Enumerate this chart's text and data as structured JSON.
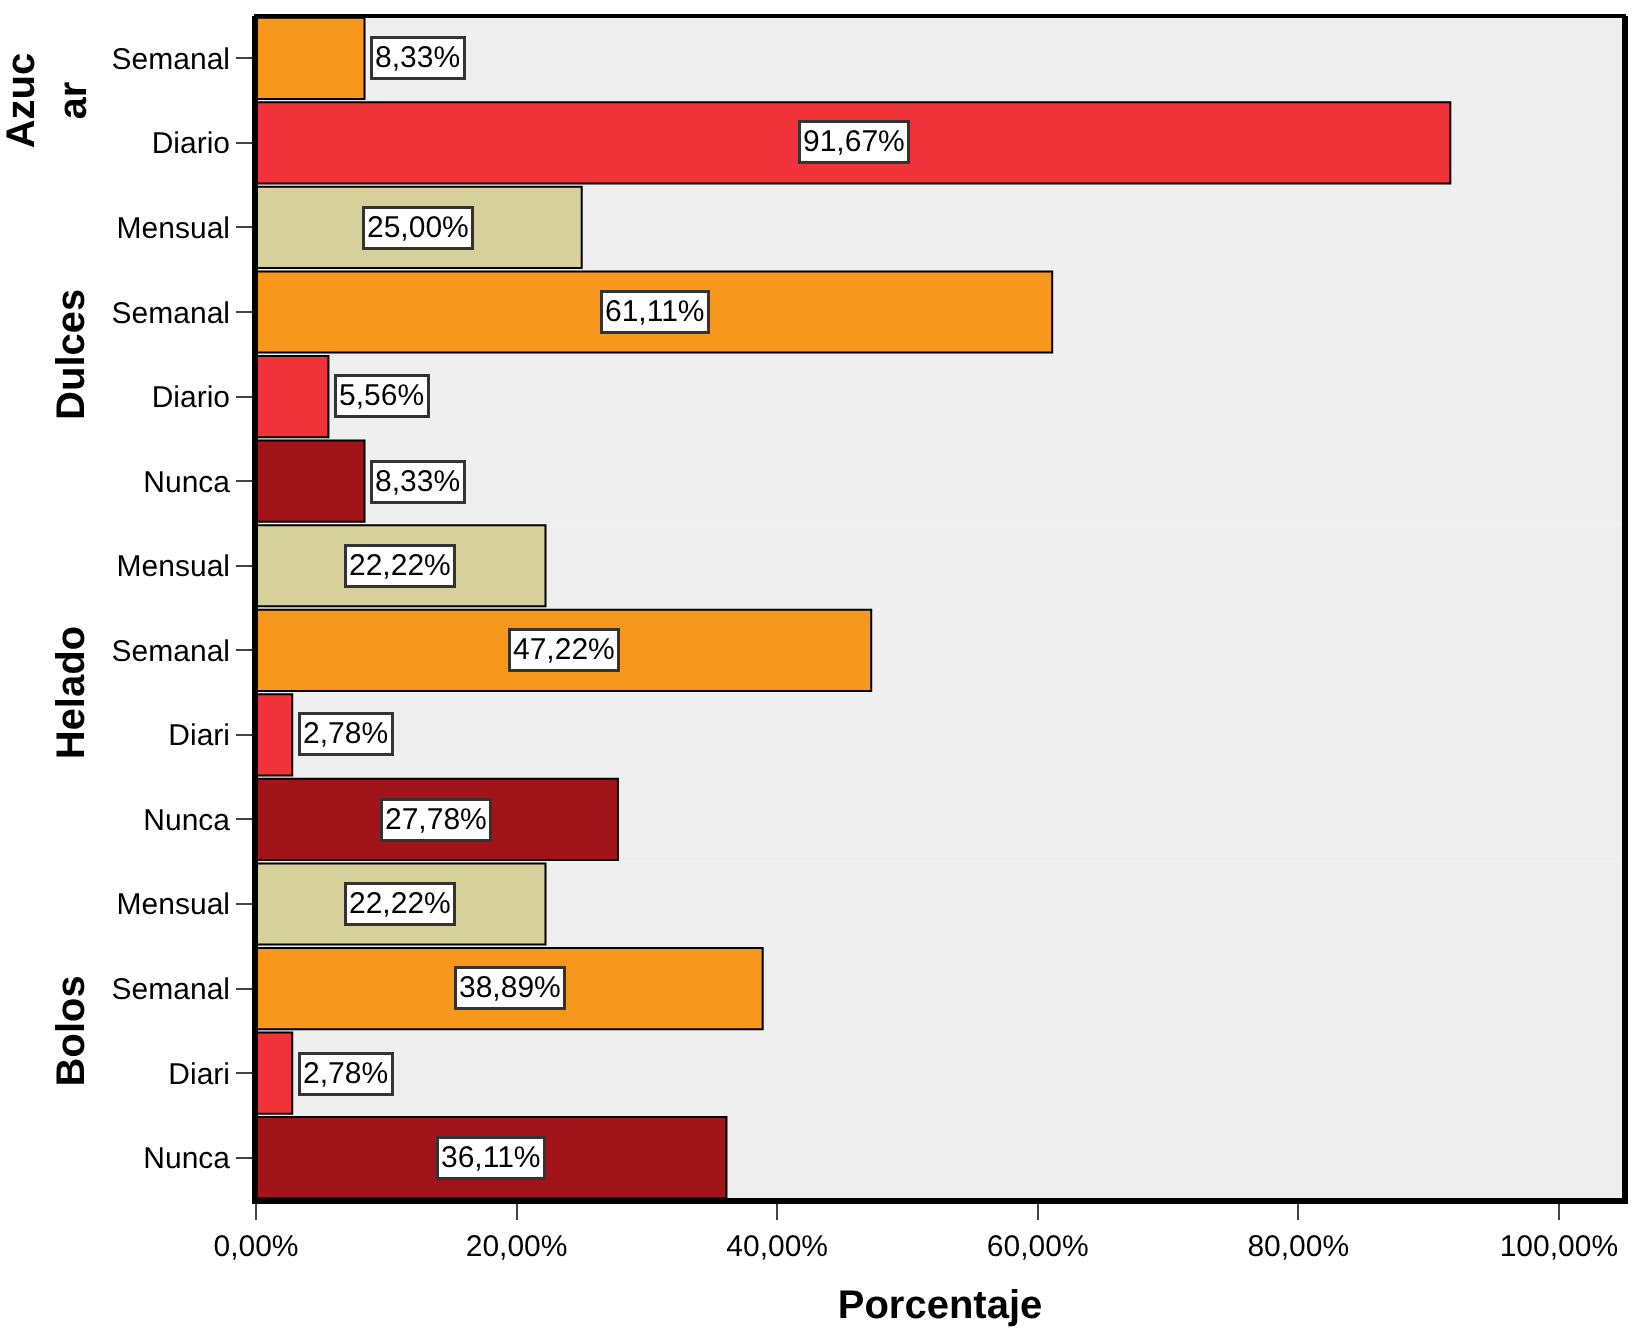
{
  "chart_data": [
    {
      "type": "bar",
      "orientation": "horizontal",
      "ylabel": "Azuc\nar",
      "categories": [
        "Semanal",
        "Diario"
      ],
      "values": [
        8.33,
        91.67
      ],
      "colors": [
        "#f7981d",
        "#ef3338"
      ],
      "value_labels": [
        "8,33%",
        "91,67%"
      ],
      "xlim": [
        0,
        105
      ],
      "tick_labels": "y"
    },
    {
      "type": "bar",
      "orientation": "horizontal",
      "ylabel": "Dulces",
      "categories": [
        "Mensual",
        "Semanal",
        "Diario",
        "Nunca"
      ],
      "values": [
        25.0,
        61.11,
        5.56,
        8.33
      ],
      "colors": [
        "#d6d09b",
        "#f7981d",
        "#ef3338",
        "#a0141a"
      ],
      "value_labels": [
        "25,00%",
        "61,11%",
        "5,56%",
        "8,33%"
      ],
      "xlim": [
        0,
        105
      ],
      "tick_labels": "y"
    },
    {
      "type": "bar",
      "orientation": "horizontal",
      "ylabel": "Helado",
      "categories": [
        "Mensual",
        "Semanal",
        "Diari",
        "Nunca"
      ],
      "values": [
        22.22,
        47.22,
        2.78,
        27.78
      ],
      "colors": [
        "#d6d09b",
        "#f7981d",
        "#ef3338",
        "#a0141a"
      ],
      "value_labels": [
        "22,22%",
        "47,22%",
        "2,78%",
        "27,78%"
      ],
      "xlim": [
        0,
        105
      ],
      "tick_labels": "y"
    },
    {
      "type": "bar",
      "orientation": "horizontal",
      "ylabel": "Bolos",
      "xlabel": "Porcentaje",
      "categories": [
        "Mensual",
        "Semanal",
        "Diari",
        "Nunca"
      ],
      "values": [
        22.22,
        38.89,
        2.78,
        36.11
      ],
      "colors": [
        "#d6d09b",
        "#f7981d",
        "#ef3338",
        "#a0141a"
      ],
      "value_labels": [
        "22,22%",
        "38,89%",
        "2,78%",
        "36,11%"
      ],
      "xlim": [
        0,
        105
      ],
      "xticks": [
        {
          "value": 0,
          "label": "0,00%"
        },
        {
          "value": 20,
          "label": "20,00%"
        },
        {
          "value": 40,
          "label": "40,00%"
        },
        {
          "value": 60,
          "label": "60,00%"
        },
        {
          "value": 80,
          "label": "80,00%"
        },
        {
          "value": 100,
          "label": "100,00%"
        }
      ]
    }
  ]
}
